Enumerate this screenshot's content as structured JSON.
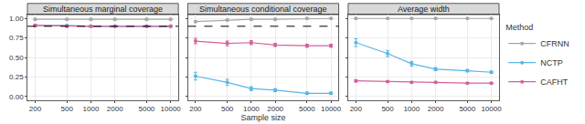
{
  "chart_data": [
    {
      "type": "line",
      "title": "Simultaneous marginal coverage",
      "log": "x",
      "x": [
        200,
        500,
        1000,
        2000,
        5000,
        10000
      ],
      "xlim": [
        160,
        12500
      ],
      "xticks": [
        200,
        500,
        1000,
        2000,
        5000,
        10000
      ],
      "ylim": [
        -0.05,
        1.05
      ],
      "yticks": [
        {
          "value": 0,
          "label": "0.00"
        },
        {
          "value": 0.25,
          "label": "0.25"
        },
        {
          "value": 0.5,
          "label": "0.50"
        },
        {
          "value": 0.75,
          "label": "0.75"
        },
        {
          "value": 1,
          "label": "1.00"
        }
      ],
      "reference_line": 0.9,
      "grid": true,
      "legend": "right",
      "legend_title": "Method",
      "marker": "circle",
      "series": [
        {
          "name": "CFRNN",
          "color": "#a6a6a6",
          "values": [
            0.99,
            0.99,
            0.99,
            0.99,
            0.99,
            0.99
          ],
          "error": [
            0.01,
            0.01,
            0.01,
            0.01,
            0.01,
            0.01
          ]
        },
        {
          "name": "NCTP",
          "color": "#5ab4e5",
          "values": [
            0.91,
            0.91,
            0.9,
            0.9,
            0.9,
            0.9
          ],
          "error": [
            0.015,
            0.012,
            0.01,
            0.01,
            0.01,
            0.01
          ]
        },
        {
          "name": "CAFHT",
          "color": "#d4609a",
          "values": [
            0.91,
            0.9,
            0.9,
            0.9,
            0.9,
            0.9
          ],
          "error": [
            0.015,
            0.012,
            0.01,
            0.01,
            0.01,
            0.01
          ]
        }
      ]
    },
    {
      "type": "line",
      "title": "Simultaneous conditional coverage",
      "x_label": "Sample size",
      "log": "x",
      "x": [
        200,
        500,
        1000,
        2000,
        5000,
        10000
      ],
      "xlim": [
        160,
        12500
      ],
      "xticks": [
        200,
        500,
        1000,
        2000,
        5000,
        10000
      ],
      "ylim": [
        -0.05,
        1.05
      ],
      "yticks": [
        {
          "value": 0,
          "label": "0.00"
        },
        {
          "value": 0.25,
          "label": "0.25"
        },
        {
          "value": 0.5,
          "label": "0.50"
        },
        {
          "value": 0.75,
          "label": "0.75"
        },
        {
          "value": 1,
          "label": "1.00"
        }
      ],
      "reference_line": 0.9,
      "grid": true,
      "marker": "circle",
      "series": [
        {
          "name": "CFRNN",
          "color": "#a6a6a6",
          "values": [
            0.96,
            0.98,
            0.99,
            0.99,
            1.0,
            1.0
          ],
          "error": [
            0.01,
            0.01,
            0.01,
            0.01,
            0.005,
            0.005
          ]
        },
        {
          "name": "NCTP",
          "color": "#5ab4e5",
          "values": [
            0.26,
            0.18,
            0.1,
            0.08,
            0.04,
            0.04
          ],
          "error": [
            0.05,
            0.04,
            0.025,
            0.02,
            0.015,
            0.015
          ]
        },
        {
          "name": "CAFHT",
          "color": "#d4609a",
          "values": [
            0.71,
            0.68,
            0.69,
            0.66,
            0.65,
            0.65
          ],
          "error": [
            0.035,
            0.03,
            0.025,
            0.02,
            0.02,
            0.02
          ]
        }
      ]
    },
    {
      "type": "line",
      "title": "Average width",
      "log": "x",
      "x": [
        200,
        500,
        1000,
        2000,
        5000,
        10000
      ],
      "xlim": [
        160,
        12500
      ],
      "xticks": [
        200,
        500,
        1000,
        2000,
        5000,
        10000
      ],
      "ylim": [
        -0.05,
        1.05
      ],
      "yticks": [
        {
          "value": 0,
          "label": "0.00"
        },
        {
          "value": 0.25,
          "label": "0.25"
        },
        {
          "value": 0.5,
          "label": "0.50"
        },
        {
          "value": 0.75,
          "label": "0.75"
        },
        {
          "value": 1,
          "label": "1.00"
        }
      ],
      "grid": true,
      "marker": "circle",
      "series": [
        {
          "name": "CFRNN",
          "color": "#a6a6a6",
          "values": [
            1.0,
            1.0,
            1.0,
            1.0,
            1.0,
            1.0
          ],
          "error": [
            0.005,
            0.005,
            0.005,
            0.005,
            0.005,
            0.005
          ]
        },
        {
          "name": "NCTP",
          "color": "#5ab4e5",
          "values": [
            0.69,
            0.55,
            0.42,
            0.35,
            0.33,
            0.31
          ],
          "error": [
            0.05,
            0.04,
            0.03,
            0.02,
            0.015,
            0.015
          ]
        },
        {
          "name": "CAFHT",
          "color": "#d4609a",
          "values": [
            0.2,
            0.19,
            0.18,
            0.18,
            0.17,
            0.17
          ],
          "error": [
            0.015,
            0.012,
            0.01,
            0.01,
            0.008,
            0.008
          ]
        }
      ]
    }
  ]
}
